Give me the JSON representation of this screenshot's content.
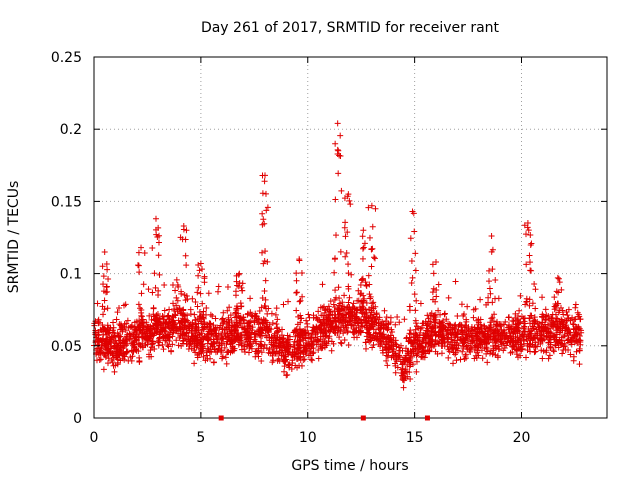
{
  "chart_data": {
    "type": "scatter",
    "title": "Day 261 of 2017, SRMTID for receiver rant",
    "xlabel": "GPS time / hours",
    "ylabel": "SRMTID / TECUs",
    "xlim": [
      0,
      24
    ],
    "ylim": [
      0,
      0.25
    ],
    "xticks": [
      0,
      5,
      10,
      15,
      20
    ],
    "xtick_labels": [
      "0",
      "5",
      "10",
      "15",
      "20"
    ],
    "yticks": [
      0,
      0.05,
      0.1,
      0.15,
      0.2,
      0.25
    ],
    "ytick_labels": [
      "0",
      "0.05",
      "0.1",
      "0.15",
      "0.2",
      "0.25"
    ],
    "grid": true,
    "marker": "+",
    "series_color": "#e00000",
    "gap_markers_x": [
      5.95,
      12.6,
      15.6
    ],
    "profile": {
      "x_range": [
        0.0,
        22.8
      ],
      "baseline": [
        [
          0.0,
          0.055
        ],
        [
          1.0,
          0.048
        ],
        [
          2.0,
          0.055
        ],
        [
          3.0,
          0.06
        ],
        [
          4.0,
          0.065
        ],
        [
          5.0,
          0.055
        ],
        [
          6.0,
          0.055
        ],
        [
          7.0,
          0.06
        ],
        [
          8.0,
          0.06
        ],
        [
          9.0,
          0.045
        ],
        [
          10.0,
          0.055
        ],
        [
          11.0,
          0.065
        ],
        [
          12.0,
          0.07
        ],
        [
          13.0,
          0.065
        ],
        [
          14.0,
          0.05
        ],
        [
          14.5,
          0.035
        ],
        [
          15.0,
          0.05
        ],
        [
          16.0,
          0.06
        ],
        [
          17.0,
          0.055
        ],
        [
          18.0,
          0.055
        ],
        [
          19.0,
          0.055
        ],
        [
          20.0,
          0.058
        ],
        [
          21.0,
          0.06
        ],
        [
          22.0,
          0.058
        ],
        [
          22.8,
          0.055
        ]
      ],
      "spikes": [
        [
          0.5,
          0.115
        ],
        [
          2.2,
          0.118
        ],
        [
          2.9,
          0.138
        ],
        [
          4.2,
          0.133
        ],
        [
          5.0,
          0.107
        ],
        [
          6.8,
          0.1
        ],
        [
          8.0,
          0.168
        ],
        [
          9.6,
          0.11
        ],
        [
          11.4,
          0.204
        ],
        [
          11.9,
          0.155
        ],
        [
          12.6,
          0.13
        ],
        [
          13.0,
          0.147
        ],
        [
          14.9,
          0.143
        ],
        [
          16.0,
          0.108
        ],
        [
          18.6,
          0.126
        ],
        [
          20.3,
          0.135
        ],
        [
          21.7,
          0.097
        ]
      ],
      "point_count": 2800
    }
  }
}
